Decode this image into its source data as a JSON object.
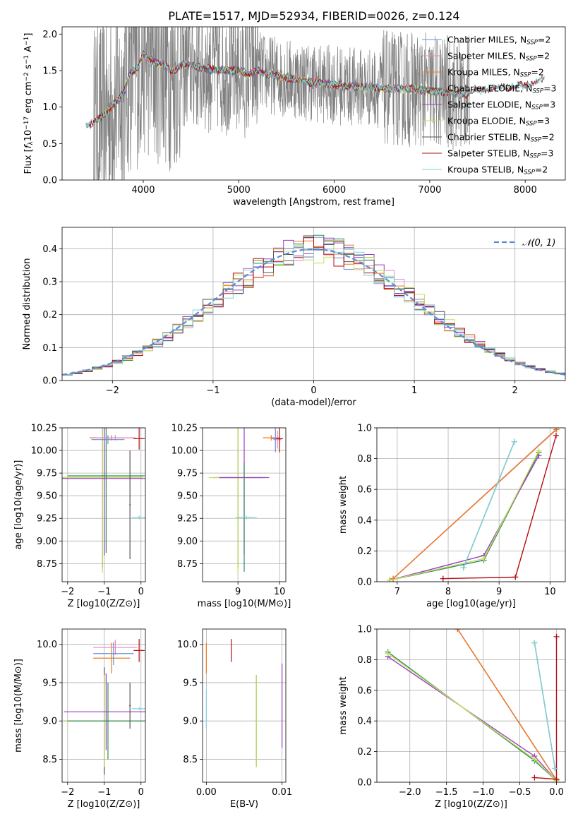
{
  "figure": {
    "title": "PLATE=1517, MJD=52934, FIBERID=0026, z=0.124"
  },
  "colors": {
    "Chabrier MILES": "#6a8fd6",
    "Salpeter MILES": "#e688c2",
    "Kroupa MILES": "#ee7a1c",
    "Chabrier ELODIE": "#2e8b57",
    "Salpeter ELODIE": "#9a3fc2",
    "Kroupa ELODIE": "#c2e05a",
    "Chabrier STELIB": "#555555",
    "Salpeter STELIB": "#b40f14",
    "Kroupa STELIB": "#7fd3dc",
    "observed": "#808080",
    "gaussian": "#5b8bd6"
  },
  "chart_data": [
    {
      "type": "line",
      "id": "spectrum",
      "title": "PLATE=1517, MJD=52934, FIBERID=0026, z=0.124",
      "xlabel": "wavelength [Angstrom, rest frame]",
      "ylabel": "Flux [f_λ 10^-17 erg cm^-2 s^-1 A^-1]",
      "xlim": [
        3150,
        8420
      ],
      "ylim": [
        0,
        2.1
      ],
      "xticks": [
        4000,
        5000,
        6000,
        7000,
        8000
      ],
      "yticks": [
        0.0,
        0.5,
        1.0,
        1.5,
        2.0
      ],
      "legend_position": "right",
      "legend": [
        {
          "name": "Chabrier MILES",
          "nssp": "=2"
        },
        {
          "name": "Salpeter MILES",
          "nssp": "=2"
        },
        {
          "name": "Kroupa MILES",
          "nssp": "=2"
        },
        {
          "name": "Chabrier ELODIE",
          "nssp": "=3"
        },
        {
          "name": "Salpeter ELODIE",
          "nssp": "=3"
        },
        {
          "name": "Kroupa ELODIE",
          "nssp": "=3"
        },
        {
          "name": "Chabrier STELIB",
          "nssp": "=2"
        },
        {
          "name": "Salpeter STELIB",
          "nssp": "=3"
        },
        {
          "name": "Kroupa STELIB",
          "nssp": "=2"
        }
      ],
      "model_continuum": {
        "x": [
          3400,
          3500,
          3600,
          3700,
          3800,
          3850,
          3900,
          3950,
          4000,
          4100,
          4200,
          4300,
          4400,
          4500,
          4700,
          4900,
          5000,
          5100,
          5200,
          5400,
          5600,
          5800,
          6000,
          6200,
          6400,
          6600,
          6800,
          7000,
          7200,
          7400
        ],
        "y": [
          0.75,
          0.8,
          0.9,
          1.05,
          1.2,
          1.45,
          1.5,
          1.55,
          1.72,
          1.62,
          1.6,
          1.48,
          1.58,
          1.57,
          1.52,
          1.5,
          1.5,
          1.45,
          1.5,
          1.42,
          1.38,
          1.33,
          1.3,
          1.28,
          1.27,
          1.25,
          1.25,
          1.22,
          1.2,
          1.18
        ]
      },
      "stelib_extension": {
        "x": [
          7400,
          7600,
          7800,
          8000,
          8200
        ],
        "y": [
          1.2,
          1.25,
          1.28,
          1.3,
          1.38
        ]
      }
    },
    {
      "type": "line",
      "id": "residual-histogram",
      "xlabel": "(data-model)/error",
      "ylabel": "Normed distribution",
      "xlim": [
        -2.5,
        2.5
      ],
      "ylim": [
        0,
        0.465
      ],
      "xticks": [
        -2,
        -1,
        0,
        1,
        2
      ],
      "yticks": [
        0.0,
        0.1,
        0.2,
        0.3,
        0.4
      ],
      "legend_position": "top-right",
      "legend": [
        {
          "name": "𝒩(0, 1)"
        }
      ],
      "bin_width": 0.1
    },
    {
      "type": "scatter",
      "id": "age-vs-Z",
      "xlabel": "Z [log10(Z/Z⊙)]",
      "ylabel": "age  [log10(age/yr)]",
      "xlim": [
        -2.15,
        0.12
      ],
      "ylim": [
        8.55,
        10.25
      ],
      "xticks": [
        -2,
        -1,
        0
      ],
      "yticks": [
        8.75,
        9.0,
        9.25,
        9.5,
        9.75,
        10.0,
        10.25
      ],
      "points": [
        {
          "series": "Chabrier STELIB",
          "x": -1.05,
          "y": 9.7,
          "xerr": 1.1,
          "yerr": 1.0
        },
        {
          "series": "Kroupa ELODIE",
          "x": -1.05,
          "y": 9.7,
          "xerr": 1.1,
          "yerr": 1.05
        },
        {
          "series": "Salpeter ELODIE",
          "x": -1.0,
          "y": 9.69,
          "xerr": 1.15,
          "yerr": 0.85
        },
        {
          "series": "Chabrier ELODIE",
          "x": -0.95,
          "y": 9.72,
          "xerr": 1.05,
          "yerr": 0.85
        },
        {
          "series": "Kroupa MILES",
          "x": -0.8,
          "y": 10.14,
          "xerr": 0.6,
          "yerr": 0.03
        },
        {
          "series": "Salpeter MILES",
          "x": -0.7,
          "y": 10.14,
          "xerr": 0.55,
          "yerr": 0.03
        },
        {
          "series": "Chabrier MILES",
          "x": -0.9,
          "y": 10.12,
          "xerr": 0.45,
          "yerr": 0.05
        },
        {
          "series": "Chabrier STELIB",
          "x": -0.3,
          "y": 9.4,
          "xerr": 0.02,
          "yerr": 0.6
        },
        {
          "series": "Kroupa STELIB",
          "x": -0.05,
          "y": 9.26,
          "xerr": 0.2,
          "yerr": 0.02
        },
        {
          "series": "Salpeter STELIB",
          "x": -0.05,
          "y": 10.13,
          "xerr": 0.15,
          "yerr": 0.12
        }
      ]
    },
    {
      "type": "scatter",
      "id": "age-vs-mass",
      "xlabel": "mass [log10(M/M⊙)]",
      "ylabel": "",
      "xlim": [
        8.15,
        10.15
      ],
      "ylim": [
        8.55,
        10.25
      ],
      "xticks": [
        9,
        10
      ],
      "yticks": [
        8.75,
        9.0,
        9.25,
        9.5,
        9.75,
        10.0,
        10.25
      ],
      "points": [
        {
          "series": "Chabrier STELIB",
          "x": 9.0,
          "y": 9.7,
          "xerr": 0.6,
          "yerr": 1.0
        },
        {
          "series": "Kroupa ELODIE",
          "x": 9.0,
          "y": 9.7,
          "xerr": 0.7,
          "yerr": 1.05
        },
        {
          "series": "Salpeter ELODIE",
          "x": 9.15,
          "y": 9.7,
          "xerr": 0.6,
          "yerr": 0.85
        },
        {
          "series": "Chabrier ELODIE",
          "x": 9.15,
          "y": 9.26,
          "xerr": 0.2,
          "yerr": 0.6
        },
        {
          "series": "Kroupa MILES",
          "x": 9.8,
          "y": 10.14,
          "xerr": 0.2,
          "yerr": 0.03
        },
        {
          "series": "Salpeter MILES",
          "x": 9.95,
          "y": 10.12,
          "xerr": 0.1,
          "yerr": 0.1
        },
        {
          "series": "Chabrier MILES",
          "x": 9.9,
          "y": 10.13,
          "xerr": 0.08,
          "yerr": 0.15
        },
        {
          "series": "Kroupa STELIB",
          "x": 9.2,
          "y": 9.26,
          "xerr": 0.25,
          "yerr": 0.02
        },
        {
          "series": "Salpeter STELIB",
          "x": 10.0,
          "y": 10.13,
          "xerr": 0.08,
          "yerr": 0.15
        }
      ]
    },
    {
      "type": "line",
      "id": "massweight-vs-age",
      "xlabel": "age  [log10(age/yr)]",
      "ylabel": "mass weight",
      "xlim": [
        6.6,
        10.3
      ],
      "ylim": [
        0,
        1.0
      ],
      "xticks": [
        7,
        8,
        9,
        10
      ],
      "yticks": [
        0.0,
        0.2,
        0.4,
        0.6,
        0.8,
        1.0
      ],
      "series": [
        {
          "name": "Chabrier MILES",
          "x": [
            6.92,
            10.12
          ],
          "y": [
            0.02,
            0.99
          ]
        },
        {
          "name": "Salpeter MILES",
          "x": [
            6.92,
            10.12
          ],
          "y": [
            0.02,
            0.99
          ]
        },
        {
          "name": "Kroupa MILES",
          "x": [
            6.92,
            10.13
          ],
          "y": [
            0.02,
            0.99
          ]
        },
        {
          "name": "Chabrier ELODIE",
          "x": [
            6.85,
            8.7,
            9.78
          ],
          "y": [
            0.01,
            0.14,
            0.84
          ]
        },
        {
          "name": "Salpeter ELODIE",
          "x": [
            6.85,
            8.7,
            9.78
          ],
          "y": [
            0.01,
            0.17,
            0.82
          ]
        },
        {
          "name": "Kroupa ELODIE",
          "x": [
            6.85,
            8.7,
            9.78
          ],
          "y": [
            0.01,
            0.15,
            0.85
          ]
        },
        {
          "name": "Chabrier STELIB",
          "x": [
            8.3,
            9.3
          ],
          "y": [
            0.09,
            0.91
          ]
        },
        {
          "name": "Salpeter STELIB",
          "x": [
            7.9,
            9.32,
            10.12
          ],
          "y": [
            0.02,
            0.03,
            0.95
          ]
        },
        {
          "name": "Kroupa STELIB",
          "x": [
            8.3,
            9.3
          ],
          "y": [
            0.09,
            0.91
          ]
        }
      ]
    },
    {
      "type": "scatter",
      "id": "mass-vs-Z",
      "xlabel": "Z [log10(Z/Z⊙)]",
      "ylabel": "mass [log10(M/M⊙)]",
      "xlim": [
        -2.15,
        0.12
      ],
      "ylim": [
        8.2,
        10.2
      ],
      "xticks": [
        -2,
        -1,
        0
      ],
      "yticks": [
        8.5,
        9.0,
        9.5,
        10.0
      ],
      "points": [
        {
          "series": "Chabrier STELIB",
          "x": -1.0,
          "y": 9.0,
          "xerr": 1.1,
          "yerr": 0.7
        },
        {
          "series": "Kroupa ELODIE",
          "x": -1.0,
          "y": 9.0,
          "xerr": 1.1,
          "yerr": 0.6
        },
        {
          "series": "Salpeter ELODIE",
          "x": -0.95,
          "y": 9.12,
          "xerr": 1.15,
          "yerr": 0.5
        },
        {
          "series": "Chabrier ELODIE",
          "x": -0.9,
          "y": 9.0,
          "xerr": 1.1,
          "yerr": 0.5
        },
        {
          "series": "Kroupa MILES",
          "x": -0.8,
          "y": 9.82,
          "xerr": 0.5,
          "yerr": 0.2
        },
        {
          "series": "Salpeter MILES",
          "x": -0.7,
          "y": 9.96,
          "xerr": 0.6,
          "yerr": 0.1
        },
        {
          "series": "Chabrier MILES",
          "x": -0.75,
          "y": 9.88,
          "xerr": 0.55,
          "yerr": 0.15
        },
        {
          "series": "Chabrier STELIB",
          "x": -0.3,
          "y": 9.2,
          "xerr": 0.02,
          "yerr": 0.3
        },
        {
          "series": "Kroupa STELIB",
          "x": -0.05,
          "y": 9.16,
          "xerr": 0.2,
          "yerr": 0.02
        },
        {
          "series": "Salpeter STELIB",
          "x": -0.05,
          "y": 9.92,
          "xerr": 0.15,
          "yerr": 0.15
        }
      ]
    },
    {
      "type": "scatter",
      "id": "mass-vs-EBV",
      "xlabel": "E(B-V)",
      "ylabel": "",
      "xlim": [
        -0.0005,
        0.0105
      ],
      "ylim": [
        8.2,
        10.2
      ],
      "xticks": [
        0.0,
        0.01
      ],
      "xtick_labels": [
        "0.00",
        "0.01"
      ],
      "yticks": [
        8.5,
        9.0,
        9.5,
        10.0
      ],
      "points": [
        {
          "series": "Kroupa MILES",
          "x": 0.0,
          "y": 9.82,
          "yerr": 0.2
        },
        {
          "series": "Kroupa STELIB",
          "x": 0.0,
          "y": 9.16,
          "yerr": 0.25
        },
        {
          "series": "Salpeter STELIB",
          "x": 0.0033,
          "y": 9.92,
          "yerr": 0.15
        },
        {
          "series": "Chabrier ELODIE",
          "x": 0.0066,
          "y": 9.0,
          "yerr": 0.6
        },
        {
          "series": "Kroupa ELODIE",
          "x": 0.0066,
          "y": 9.0,
          "yerr": 0.6
        },
        {
          "series": "Salpeter ELODIE",
          "x": 0.01,
          "y": 9.2,
          "yerr": 0.55
        }
      ]
    },
    {
      "type": "line",
      "id": "massweight-vs-Z",
      "xlabel": "Z [log10(Z/Z⊙)]",
      "ylabel": "mass weight",
      "xlim": [
        -2.45,
        0.12
      ],
      "ylim": [
        0,
        1.0
      ],
      "xticks": [
        -2.0,
        -1.5,
        -1.0,
        -0.5,
        0.0
      ],
      "xtick_labels": [
        "−2.0",
        "−1.5",
        "−1.0",
        "−0.5",
        "0.0"
      ],
      "yticks": [
        0.0,
        0.2,
        0.4,
        0.6,
        0.8,
        1.0
      ],
      "series": [
        {
          "name": "Chabrier MILES",
          "x": [
            -1.35,
            0.0
          ],
          "y": [
            1.0,
            0.015
          ]
        },
        {
          "name": "Salpeter MILES",
          "x": [
            -1.35,
            0.0
          ],
          "y": [
            1.0,
            0.015
          ]
        },
        {
          "name": "Kroupa MILES",
          "x": [
            -1.35,
            0.0
          ],
          "y": [
            1.0,
            0.015
          ]
        },
        {
          "name": "Chabrier ELODIE",
          "x": [
            -2.3,
            -0.3,
            0.0
          ],
          "y": [
            0.85,
            0.14,
            0.01
          ]
        },
        {
          "name": "Salpeter ELODIE",
          "x": [
            -2.3,
            -0.3,
            0.0
          ],
          "y": [
            0.82,
            0.17,
            0.01
          ]
        },
        {
          "name": "Kroupa ELODIE",
          "x": [
            -2.3,
            -0.3,
            0.0
          ],
          "y": [
            0.84,
            0.15,
            0.01
          ]
        },
        {
          "name": "Chabrier STELIB",
          "x": [
            -0.3,
            -0.02
          ],
          "y": [
            0.91,
            0.09
          ]
        },
        {
          "name": "Salpeter STELIB",
          "x": [
            -0.3,
            0.0,
            0.0
          ],
          "y": [
            0.03,
            0.02,
            0.95
          ]
        },
        {
          "name": "Kroupa STELIB",
          "x": [
            -0.3,
            -0.02
          ],
          "y": [
            0.91,
            0.09
          ]
        }
      ]
    }
  ]
}
